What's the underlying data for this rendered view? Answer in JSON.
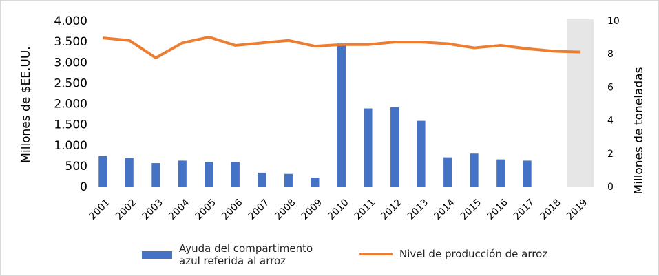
{
  "chart_data": {
    "type": "bar_line",
    "categories": [
      "2001",
      "2002",
      "2003",
      "2004",
      "2005",
      "2006",
      "2007",
      "2008",
      "2009",
      "2010",
      "2011",
      "2012",
      "2013",
      "2014",
      "2015",
      "2016",
      "2017",
      "2018",
      "2019"
    ],
    "series": [
      {
        "name": "Ayuda del compartimento azul referida al arroz",
        "type": "bar",
        "axis": "y",
        "color": "#4472c4",
        "values": [
          750,
          700,
          580,
          640,
          610,
          610,
          350,
          320,
          230,
          3480,
          1900,
          1930,
          1600,
          720,
          810,
          670,
          640,
          null,
          null
        ]
      },
      {
        "name": "Nivel de producción de arroz",
        "type": "line",
        "axis": "y2",
        "color": "#ed7d31",
        "values": [
          9.0,
          8.85,
          7.8,
          8.7,
          9.05,
          8.55,
          8.7,
          8.85,
          8.5,
          8.6,
          8.6,
          8.75,
          8.75,
          8.65,
          8.4,
          8.55,
          8.35,
          8.2,
          8.15
        ]
      }
    ],
    "ylabel": "Millones de $EE.UU.",
    "y2label": "Millones de toneladas",
    "ylim": [
      0,
      4000
    ],
    "yticks": [
      0,
      500,
      {
        "value": 1000,
        "label": "1.000"
      },
      {
        "value": 1500,
        "label": "1.500"
      },
      {
        "value": 2000,
        "label": "2.000"
      },
      {
        "value": 2500,
        "label": "2.500"
      },
      {
        "value": 3000,
        "label": "3.000"
      },
      {
        "value": 3500,
        "label": "3.500"
      },
      {
        "value": 4000,
        "label": "4.000"
      }
    ],
    "y2lim": [
      0,
      10
    ],
    "y2ticks": [
      0,
      2,
      4,
      6,
      8,
      10
    ],
    "highlight": "2019",
    "legend": "bottom"
  }
}
